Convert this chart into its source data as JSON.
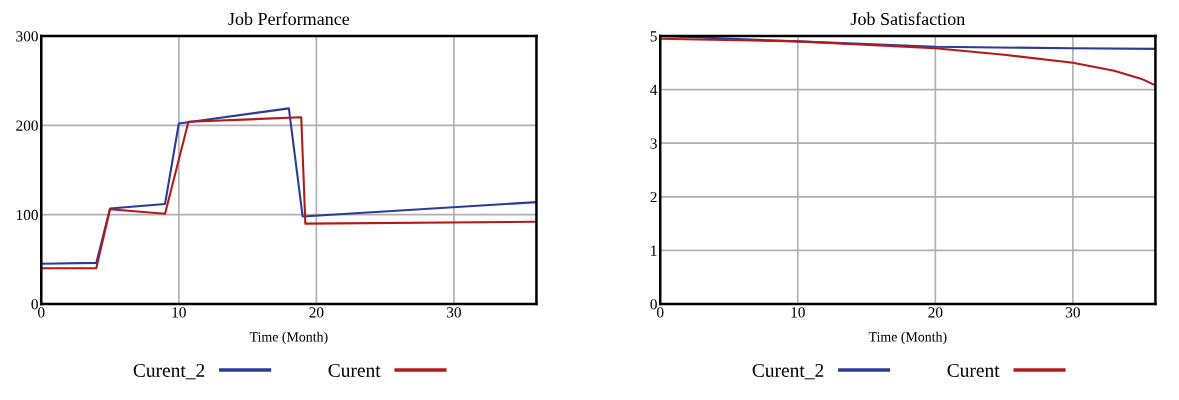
{
  "chart_data": [
    {
      "type": "line",
      "title": "Job Performance",
      "xlabel": "Time (Month)",
      "xlim": [
        0,
        36
      ],
      "ylim": [
        0,
        300
      ],
      "xticks": [
        0,
        10,
        20,
        30
      ],
      "yticks": [
        0,
        100,
        200,
        300
      ],
      "grid": true,
      "legend": "bottom",
      "series": [
        {
          "name": "Curent_2",
          "color": "#2e3a9a",
          "x": [
            0,
            4,
            5,
            9,
            10,
            18,
            19,
            36
          ],
          "values": [
            45,
            46,
            107,
            112,
            202,
            219,
            98,
            114
          ]
        },
        {
          "name": "Curent",
          "color": "#b31b1b",
          "x": [
            0,
            4,
            5,
            9,
            10.7,
            18.9,
            19.2,
            36
          ],
          "values": [
            40,
            40,
            106,
            101,
            204,
            209,
            90,
            92
          ]
        }
      ]
    },
    {
      "type": "line",
      "title": "Job Satisfaction",
      "xlabel": "Time (Month)",
      "xlim": [
        0,
        36
      ],
      "ylim": [
        0,
        5
      ],
      "xticks": [
        0,
        10,
        20,
        30
      ],
      "yticks": [
        0,
        1,
        2,
        3,
        4,
        5
      ],
      "grid": true,
      "legend": "bottom",
      "series": [
        {
          "name": "Curent_2",
          "color": "#2e3a9a",
          "x": [
            0,
            10,
            20,
            30,
            36
          ],
          "values": [
            5.0,
            4.9,
            4.8,
            4.77,
            4.76
          ]
        },
        {
          "name": "Curent",
          "color": "#b31b1b",
          "x": [
            0,
            10,
            20,
            25,
            30,
            33,
            35,
            36
          ],
          "values": [
            4.95,
            4.9,
            4.77,
            4.65,
            4.5,
            4.35,
            4.2,
            4.08
          ]
        }
      ]
    }
  ]
}
